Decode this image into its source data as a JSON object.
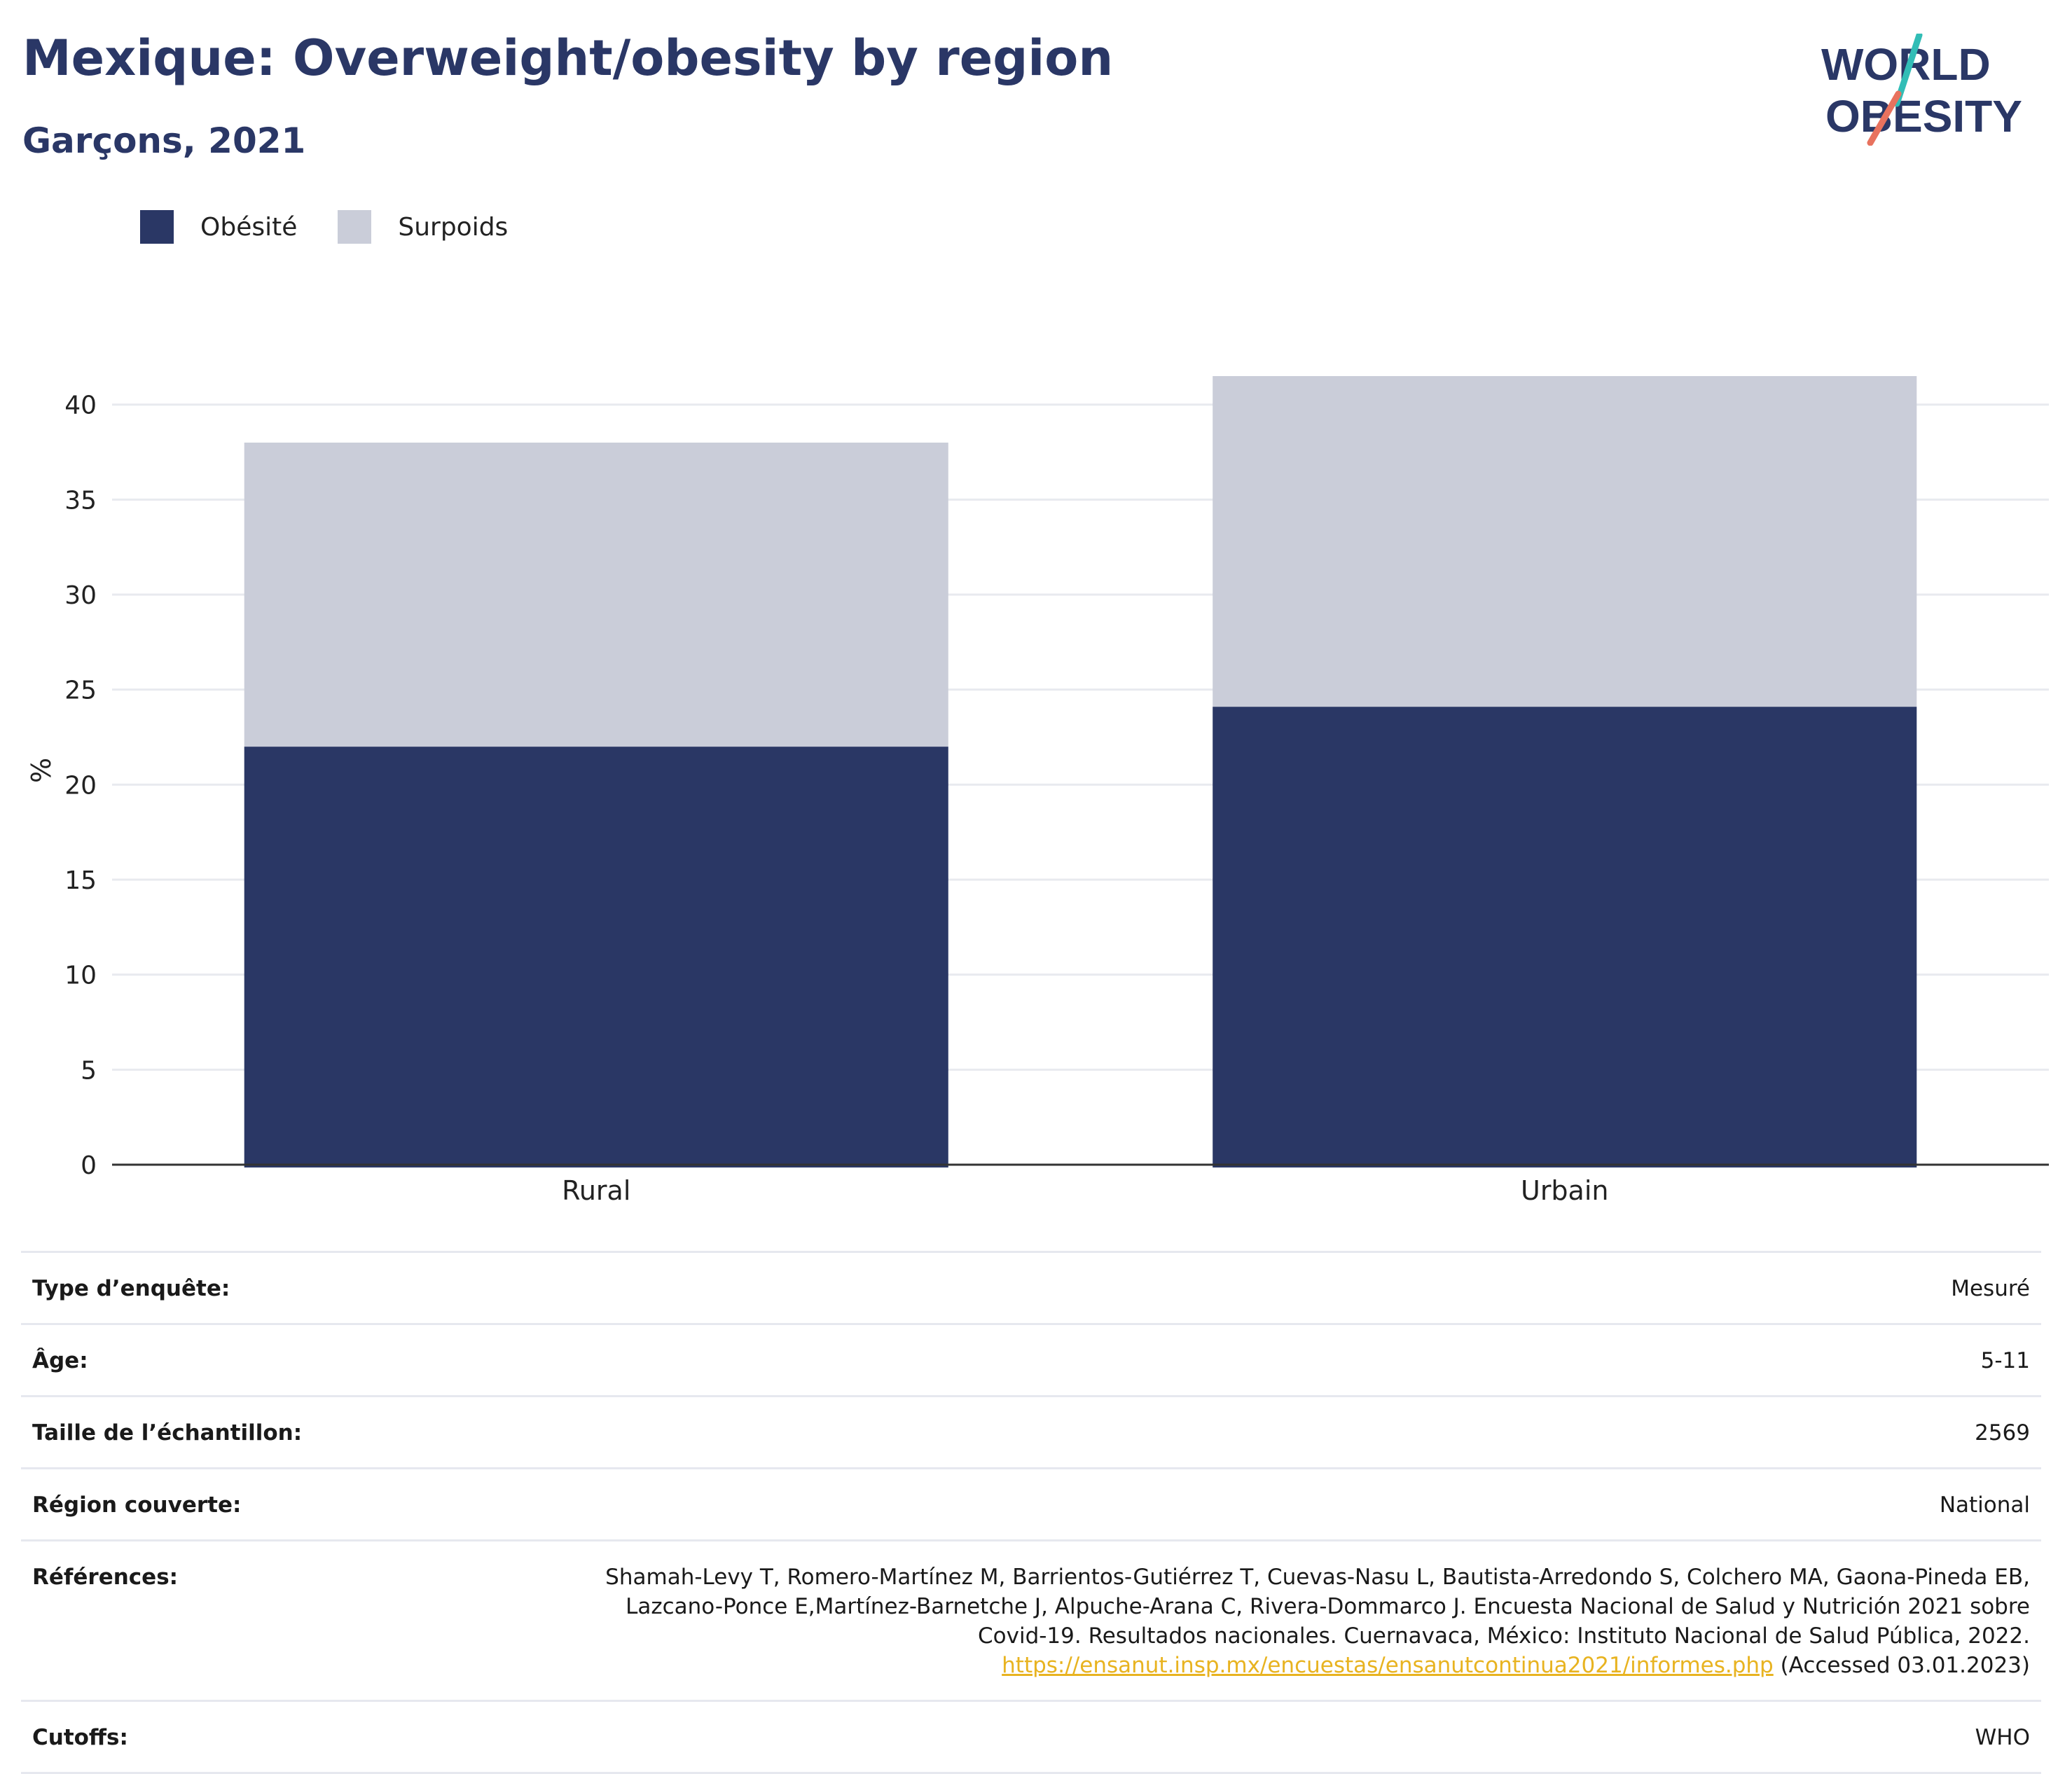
{
  "header": {
    "title": "Mexique: Overweight/obesity by region",
    "subtitle": "Garçons, 2021",
    "logo_line1": "WORLD",
    "logo_line2": "OBESITY"
  },
  "legend": [
    {
      "label": "Obésité",
      "color": "#2a3765"
    },
    {
      "label": "Surpoids",
      "color": "#cacdd9"
    }
  ],
  "chart_data": {
    "type": "bar",
    "stacked": true,
    "categories": [
      "Rural",
      "Urbain"
    ],
    "series": [
      {
        "name": "Obésité",
        "values": [
          22.0,
          24.1
        ],
        "color": "#2a3765"
      },
      {
        "name": "Surpoids",
        "values": [
          16.0,
          17.4
        ],
        "color": "#cacdd9"
      }
    ],
    "ylabel": "%",
    "ylim": [
      0,
      41.5
    ],
    "yticks": [
      0,
      5,
      10,
      15,
      20,
      25,
      30,
      35,
      40
    ],
    "grid": true,
    "legend_position": "top-left"
  },
  "meta": [
    {
      "key": "Type d’enquête:",
      "value": "Mesuré"
    },
    {
      "key": "Âge:",
      "value": "5-11"
    },
    {
      "key": "Taille de l’échantillon:",
      "value": "2569"
    },
    {
      "key": "Région couverte:",
      "value": "National"
    },
    {
      "key": "Références:",
      "lines": [
        "Shamah-Levy T, Romero-Martínez M, Barrientos-Gutiérrez T, Cuevas-Nasu L, Bautista-Arredondo S, Colchero MA, Gaona-Pineda EB,",
        "Lazcano-Ponce E,Martínez-Barnetche J, Alpuche-Arana C, Rivera-Dommarco J. Encuesta Nacional de Salud y Nutrición 2021 sobre",
        "Covid-19. Resultados nacionales. Cuernavaca, México: Instituto Nacional de Salud Pública, 2022."
      ],
      "link": "https://ensanut.insp.mx/encuestas/ensanutcontinua2021/informes.php",
      "link_suffix": " (Accessed 03.01.2023)"
    },
    {
      "key": "Cutoffs:",
      "value": "WHO"
    }
  ]
}
